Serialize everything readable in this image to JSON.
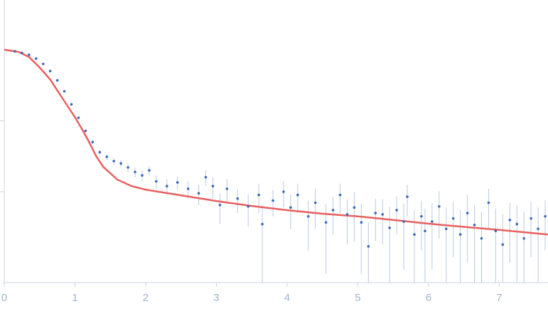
{
  "chart_data": {
    "type": "scatter",
    "xlim": [
      0,
      7.69
    ],
    "xticks": [
      0,
      1,
      2,
      3,
      4,
      5,
      6,
      7
    ],
    "ylim": [
      0.000525,
      5.01
    ],
    "yticks": [
      0.01,
      0.1
    ],
    "log_y": true,
    "points": {
      "color": "#3c6ab8",
      "error_color": "#b9c9e2",
      "x": [
        0.15,
        0.25,
        0.35,
        0.45,
        0.55,
        0.65,
        0.75,
        0.85,
        0.95,
        1.05,
        1.15,
        1.25,
        1.35,
        1.45,
        1.55,
        1.65,
        1.75,
        1.85,
        1.95,
        2.05,
        2.15,
        2.3,
        2.45,
        2.6,
        2.75,
        2.85,
        2.95,
        3.05,
        3.15,
        3.3,
        3.45,
        3.6,
        3.65,
        3.8,
        3.95,
        4.05,
        4.15,
        4.3,
        4.4,
        4.55,
        4.65,
        4.75,
        4.85,
        4.95,
        5.05,
        5.15,
        5.25,
        5.35,
        5.45,
        5.55,
        5.65,
        5.7,
        5.8,
        5.9,
        5.95,
        6.05,
        6.15,
        6.25,
        6.35,
        6.45,
        6.55,
        6.65,
        6.75,
        6.85,
        6.95,
        7.05,
        7.15,
        7.25,
        7.35,
        7.45,
        7.55,
        7.65
      ],
      "values": [
        0.95,
        0.9,
        0.85,
        0.75,
        0.63,
        0.5,
        0.37,
        0.26,
        0.17,
        0.11,
        0.072,
        0.05,
        0.036,
        0.031,
        0.027,
        0.025,
        0.022,
        0.019,
        0.017,
        0.02,
        0.014,
        0.012,
        0.0135,
        0.011,
        0.0095,
        0.016,
        0.012,
        0.0065,
        0.011,
        0.008,
        0.0062,
        0.009,
        0.0035,
        0.0075,
        0.01,
        0.006,
        0.009,
        0.0045,
        0.007,
        0.0037,
        0.0055,
        0.009,
        0.0048,
        0.006,
        0.0037,
        0.0017,
        0.005,
        0.0048,
        0.0031,
        0.0055,
        0.0038,
        0.0085,
        0.0025,
        0.0045,
        0.0028,
        0.0038,
        0.0062,
        0.003,
        0.0042,
        0.0025,
        0.005,
        0.0034,
        0.0022,
        0.007,
        0.0028,
        0.0018,
        0.004,
        0.0035,
        0.0022,
        0.0042,
        0.003,
        0.0045
      ],
      "errors": [
        0.01,
        0.01,
        0.01,
        0.01,
        0.01,
        0.01,
        0.01,
        0.008,
        0.006,
        0.004,
        0.003,
        0.003,
        0.003,
        0.003,
        0.003,
        0.003,
        0.003,
        0.003,
        0.003,
        0.003,
        0.003,
        0.003,
        0.003,
        0.003,
        0.003,
        0.004,
        0.004,
        0.003,
        0.004,
        0.003,
        0.003,
        0.004,
        0.003,
        0.003,
        0.004,
        0.003,
        0.004,
        0.003,
        0.004,
        0.003,
        0.003,
        0.004,
        0.003,
        0.004,
        0.003,
        0.002,
        0.003,
        0.003,
        0.003,
        0.003,
        0.003,
        0.004,
        0.003,
        0.003,
        0.003,
        0.003,
        0.004,
        0.003,
        0.003,
        0.003,
        0.004,
        0.003,
        0.003,
        0.004,
        0.003,
        0.003,
        0.003,
        0.003,
        0.003,
        0.003,
        0.003,
        0.003
      ]
    },
    "fit": {
      "color": "#e8605f",
      "x": [
        0,
        0.2,
        0.35,
        0.5,
        0.65,
        0.8,
        1.0,
        1.1,
        1.2,
        1.3,
        1.4,
        1.6,
        1.8,
        2.0,
        2.5,
        3.0,
        3.5,
        4.0,
        4.5,
        5.0,
        5.5,
        6.0,
        6.5,
        7.0,
        7.5,
        7.69
      ],
      "values": [
        1,
        0.933,
        0.79,
        0.562,
        0.38,
        0.224,
        0.112,
        0.076,
        0.05,
        0.0316,
        0.0224,
        0.0148,
        0.012,
        0.0107,
        0.0089,
        0.0074,
        0.0063,
        0.0055,
        0.0049,
        0.0045,
        0.004,
        0.00355,
        0.0032,
        0.0029,
        0.0026,
        0.0025
      ]
    }
  }
}
